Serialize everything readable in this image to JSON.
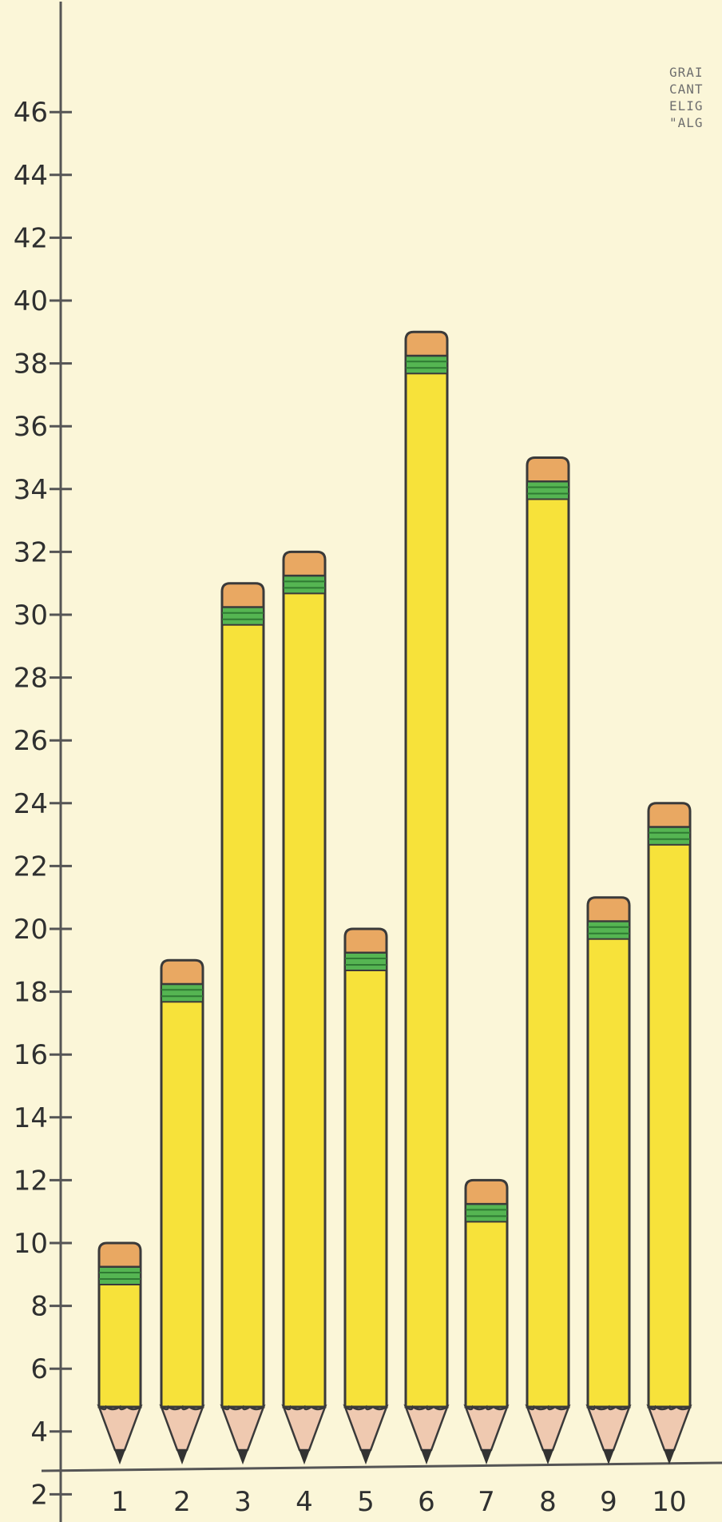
{
  "note_lines": [
    "GRAI",
    "CANT",
    "ELIG",
    "\"ALG"
  ],
  "colors": {
    "background": "#fbf6d8",
    "pencil_body": "#f7e23a",
    "pencil_outline": "#3a3a3a",
    "eraser": "#e9a862",
    "ferrule_band": "#55b552",
    "wood_tip": "#efc9b0",
    "lead": "#333333",
    "axis": "#555555"
  },
  "chart_data": {
    "type": "bar",
    "title": "",
    "xlabel": "",
    "ylabel": "",
    "categories": [
      "1",
      "2",
      "3",
      "4",
      "5",
      "6",
      "7",
      "8",
      "9",
      "10"
    ],
    "values": [
      10,
      19,
      31,
      32,
      20,
      39,
      12,
      35,
      21,
      24
    ],
    "ylim": [
      0,
      47
    ],
    "y_ticks": [
      2,
      4,
      6,
      8,
      10,
      12,
      14,
      16,
      18,
      20,
      22,
      24,
      26,
      28,
      30,
      32,
      34,
      36,
      38,
      40,
      42,
      44,
      46
    ],
    "y_tick_labels": [
      "2",
      "4",
      "6",
      "8",
      "10",
      "12",
      "14",
      "16",
      "18",
      "20",
      "22",
      "24",
      "26",
      "28",
      "30",
      "32",
      "34",
      "36",
      "38",
      "40",
      "42",
      "44",
      "46"
    ],
    "grid": false,
    "legend": "none"
  }
}
